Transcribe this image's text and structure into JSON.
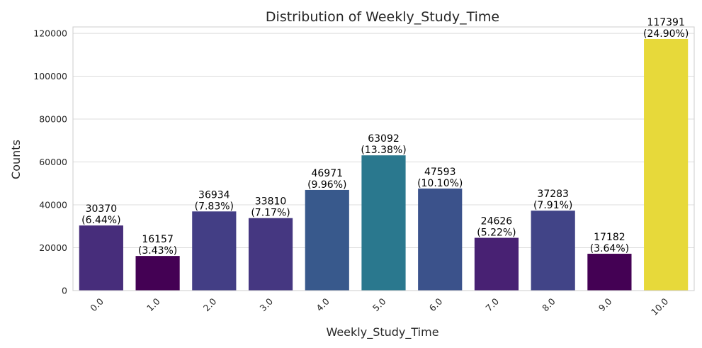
{
  "chart_data": {
    "type": "bar",
    "title": "Distribution of Weekly_Study_Time",
    "xlabel": "Weekly_Study_Time",
    "ylabel": "Counts",
    "categories": [
      "0.0",
      "1.0",
      "2.0",
      "3.0",
      "4.0",
      "5.0",
      "6.0",
      "7.0",
      "8.0",
      "9.0",
      "10.0"
    ],
    "values": [
      30370,
      16157,
      36934,
      33810,
      46971,
      63092,
      47593,
      24626,
      37283,
      17182,
      117391
    ],
    "percent_labels": [
      "(6.44%)",
      "(3.43%)",
      "(7.83%)",
      "(7.17%)",
      "(9.96%)",
      "(13.38%)",
      "(10.10%)",
      "(5.22%)",
      "(7.91%)",
      "(3.64%)",
      "(24.90%)"
    ],
    "bar_colors": [
      "#472d7b",
      "#440154",
      "#433e85",
      "#453781",
      "#38598c",
      "#2a788e",
      "#3b528b",
      "#482173",
      "#414487",
      "#440154",
      "#e7d93a"
    ],
    "ylim": [
      0,
      123000
    ],
    "yticks": [
      0,
      20000,
      40000,
      60000,
      80000,
      100000,
      120000
    ],
    "grid": "horizontal",
    "legend": "none"
  }
}
